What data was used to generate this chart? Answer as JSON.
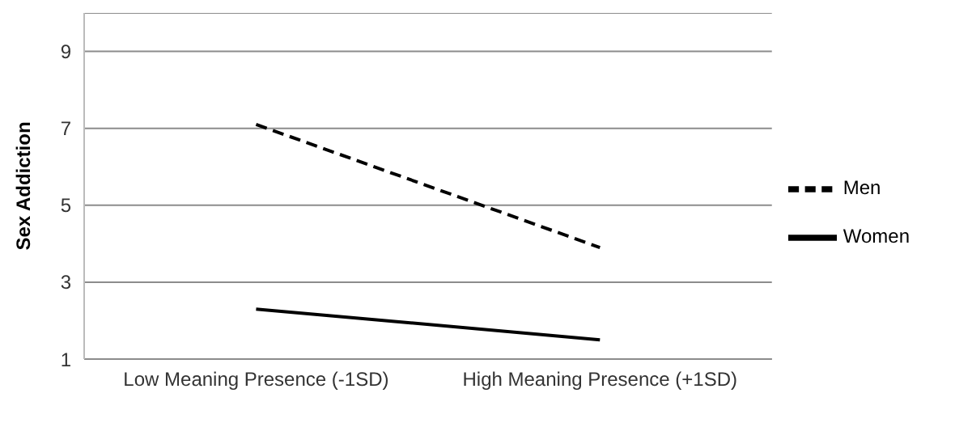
{
  "chart_data": {
    "type": "line",
    "ylabel": "Sex Addiction",
    "categories": [
      "Low Meaning Presence (-1SD)",
      "High Meaning Presence (+1SD)"
    ],
    "series": [
      {
        "name": "Men",
        "color": "#000000",
        "values": [
          7.1,
          3.9
        ],
        "line_style": "dashed"
      },
      {
        "name": "Women",
        "color": "#000000",
        "values": [
          2.3,
          1.5
        ],
        "line_style": "solid"
      }
    ],
    "ylim": [
      1,
      10
    ],
    "yticks": [
      1,
      3,
      5,
      7,
      9
    ],
    "grid": "y",
    "legend": "right",
    "marker": "none"
  }
}
